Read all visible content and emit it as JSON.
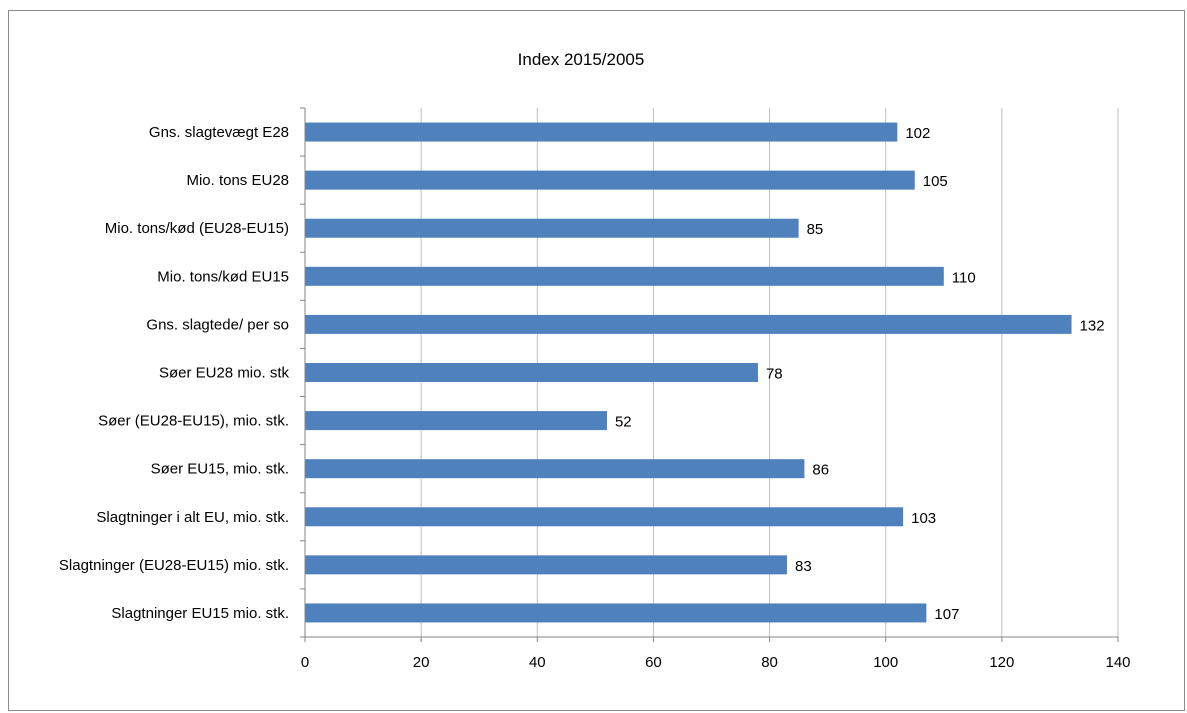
{
  "chart_data": {
    "type": "bar",
    "orientation": "horizontal",
    "title": "Index 2015/2005",
    "categories": [
      "Gns. slagtevægt E28",
      "Mio. tons EU28",
      "Mio. tons/kød (EU28-EU15)",
      "Mio. tons/kød EU15",
      "Gns. slagtede/ per so",
      "Søer EU28 mio. stk",
      "Søer (EU28-EU15), mio. stk.",
      "Søer EU15, mio. stk.",
      "Slagtninger i alt EU, mio. stk.",
      "Slagtninger (EU28-EU15) mio. stk.",
      "Slagtninger EU15 mio. stk."
    ],
    "values": [
      102,
      105,
      85,
      110,
      132,
      78,
      52,
      86,
      103,
      83,
      107
    ],
    "data_labels": [
      "102",
      "105",
      "85",
      "110",
      "132",
      "78",
      "52",
      "86",
      "103",
      "83",
      "107"
    ],
    "xlim": [
      0,
      140
    ],
    "x_ticks": [
      0,
      20,
      40,
      60,
      80,
      100,
      120,
      140
    ],
    "x_tick_labels": [
      "0",
      "20",
      "40",
      "60",
      "80",
      "100",
      "120",
      "140"
    ],
    "grid": true,
    "legend": "none",
    "bar_color": "#4f81bd",
    "grid_color": "#bfbfbf",
    "axis_color": "#868686"
  }
}
